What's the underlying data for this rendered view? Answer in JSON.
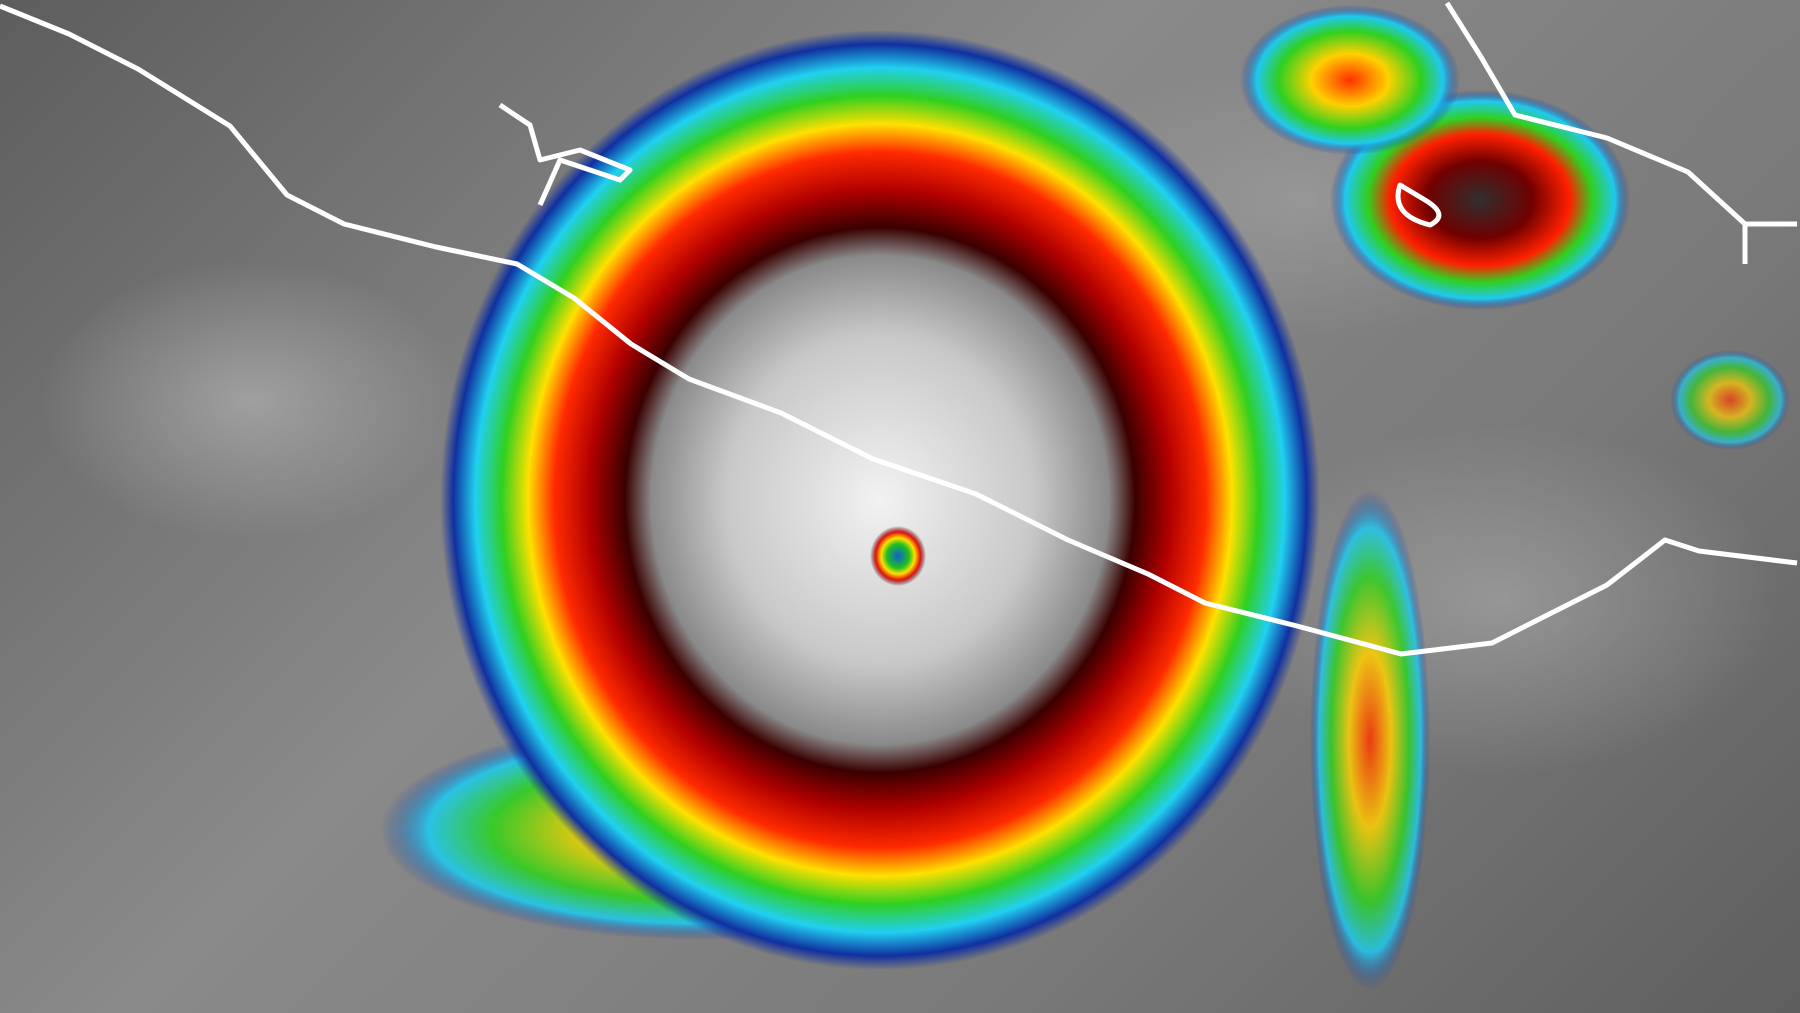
{
  "image": {
    "subject": "hurricane-infrared-satellite",
    "colors": {
      "background_cloud": "#8a8a8a",
      "outer_band_blue": "#1a3fb0",
      "cyan": "#29d8f0",
      "green": "#22c81e",
      "yellow": "#f0e020",
      "red": "#e01010",
      "dark_red": "#600000",
      "cdo_gray": "#d8d8d8",
      "eye": "#1060d0",
      "coastline": "#ffffff"
    }
  }
}
